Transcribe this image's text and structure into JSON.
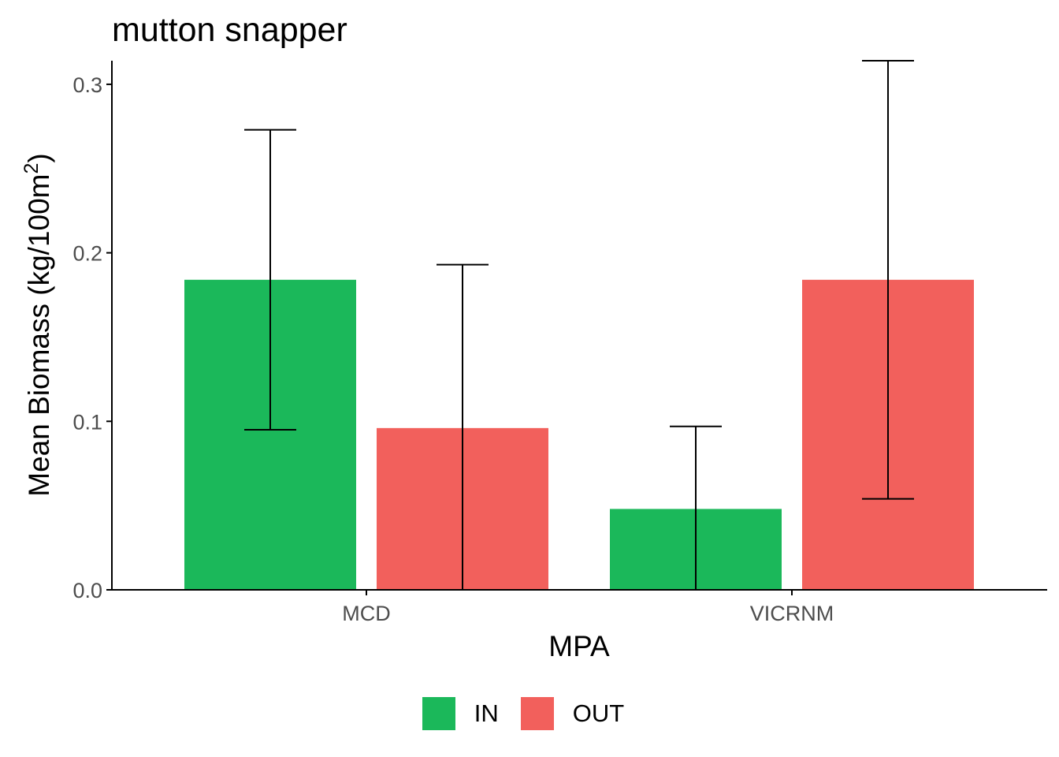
{
  "chart_data": {
    "type": "bar",
    "title": "mutton snapper",
    "xlabel": "MPA",
    "ylabel": "Mean Biomass (kg/100m",
    "ylabel_superscript": "2",
    "ylabel_close": ")",
    "categories": [
      "MCD",
      "VICRNM"
    ],
    "series": [
      {
        "name": "IN",
        "color": "#1bb85a",
        "values": [
          0.184,
          0.048
        ],
        "error_low": [
          0.095,
          0.0
        ],
        "error_high": [
          0.273,
          0.097
        ]
      },
      {
        "name": "OUT",
        "color": "#f2605c",
        "values": [
          0.096,
          0.184
        ],
        "error_low": [
          0.0,
          0.054
        ],
        "error_high": [
          0.193,
          0.314
        ]
      }
    ],
    "ylim": [
      0,
      0.314
    ],
    "yticks": [
      0.0,
      0.1,
      0.2,
      0.3
    ],
    "ytick_labels": [
      "0.0",
      "0.1",
      "0.2",
      "0.3"
    ],
    "grid": false,
    "legend_position": "bottom"
  }
}
